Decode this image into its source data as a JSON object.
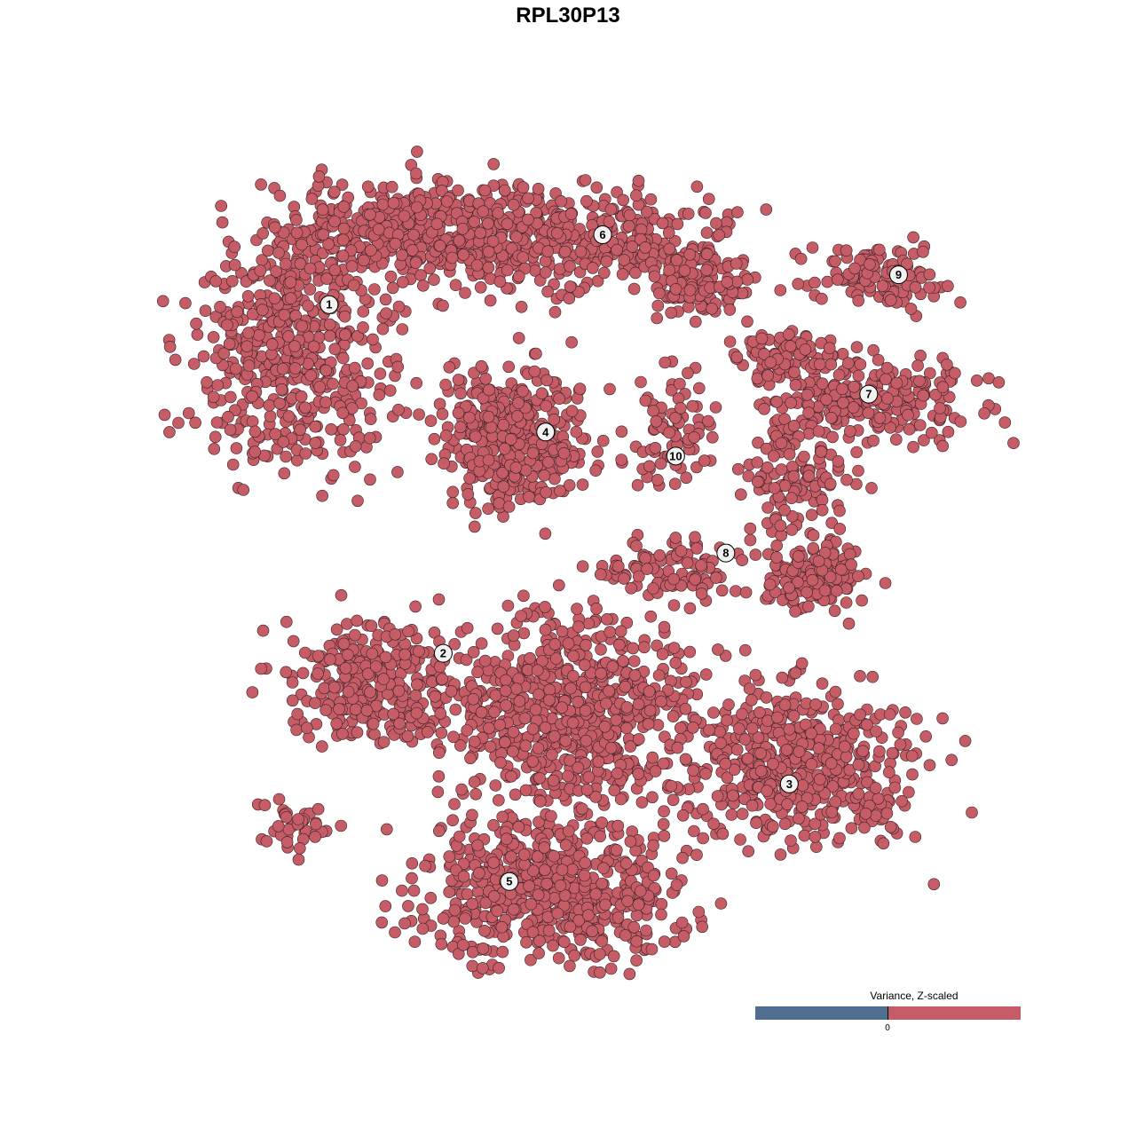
{
  "chart_data": {
    "type": "scatter",
    "title": "RPL30P13",
    "xlabel": "",
    "ylabel": "",
    "xlim": [
      -53,
      53
    ],
    "ylim": [
      -53,
      53
    ],
    "grid": false,
    "axes_visible": false,
    "point_color": "#c55c66",
    "point_outline": "#3a2326",
    "note_values": "all cells show Z-scaled variance above 0 (uniform red)",
    "clusters": [
      {
        "id": "1",
        "label_pos": [
          -22.4,
          24.7
        ],
        "regions": [
          {
            "center": [
              -25.8,
              20
            ],
            "spread": [
              9.2,
              10.8
            ],
            "n": 500
          },
          {
            "center": [
              -15,
              31.7
            ],
            "spread": [
              12.5,
              5
            ],
            "n": 350
          }
        ]
      },
      {
        "id": "2",
        "label_pos": [
          -11.7,
          -8
        ],
        "regions": [
          {
            "center": [
              -18.3,
              -10.8
            ],
            "spread": [
              8.3,
              5.8
            ],
            "n": 300
          },
          {
            "center": [
              -25.8,
              -24.2
            ],
            "spread": [
              3.3,
              2.5
            ],
            "n": 40
          }
        ]
      },
      {
        "id": "3",
        "label_pos": [
          20.75,
          -20.25
        ],
        "regions": [
          {
            "center": [
              21.7,
              -18.3
            ],
            "spread": [
              10.8,
              7.5
            ],
            "n": 500
          }
        ]
      },
      {
        "id": "4",
        "label_pos": [
          -2.1,
          12.75
        ],
        "regions": [
          {
            "center": [
              -5,
              12.5
            ],
            "spread": [
              6.7,
              6.7
            ],
            "n": 400
          }
        ]
      },
      {
        "id": "5",
        "label_pos": [
          -5.5,
          -29.4
        ],
        "regions": [
          {
            "center": [
              -1.7,
              -30
            ],
            "spread": [
              11.7,
              6.7
            ],
            "n": 600
          },
          {
            "center": [
              0.8,
              -13.3
            ],
            "spread": [
              11.7,
              9.2
            ],
            "n": 700
          }
        ]
      },
      {
        "id": "6",
        "label_pos": [
          3.25,
          31.25
        ],
        "regions": [
          {
            "center": [
              0,
              30.8
            ],
            "spread": [
              15,
              5
            ],
            "n": 400
          },
          {
            "center": [
              12.5,
              26.7
            ],
            "spread": [
              5,
              3.3
            ],
            "n": 120
          }
        ]
      },
      {
        "id": "7",
        "label_pos": [
          28.2,
          16.3
        ],
        "regions": [
          {
            "center": [
              28.3,
              15.8
            ],
            "spread": [
              10.8,
              4.2
            ],
            "n": 250
          },
          {
            "center": [
              20,
              20
            ],
            "spread": [
              4.2,
              2.5
            ],
            "n": 80
          }
        ]
      },
      {
        "id": "8",
        "label_pos": [
          14.8,
          1.4
        ],
        "regions": [
          {
            "center": [
              21.7,
              8.3
            ],
            "spread": [
              5,
              5
            ],
            "n": 120
          },
          {
            "center": [
              23.3,
              -0.8
            ],
            "spread": [
              5,
              3.3
            ],
            "n": 150
          },
          {
            "center": [
              10,
              0
            ],
            "spread": [
              6.7,
              2.5
            ],
            "n": 100
          }
        ]
      },
      {
        "id": "9",
        "label_pos": [
          31,
          27.5
        ],
        "regions": [
          {
            "center": [
              29.2,
              27.5
            ],
            "spread": [
              6.7,
              3.3
            ],
            "n": 120
          }
        ]
      },
      {
        "id": "10",
        "label_pos": [
          10.1,
          10.5
        ],
        "regions": [
          {
            "center": [
              10,
              13.3
            ],
            "spread": [
              4.2,
              5
            ],
            "n": 80
          }
        ]
      }
    ],
    "legend": {
      "title": "Variance, Z-scaled",
      "placement": "bottom-right",
      "tick_label": "0",
      "low_color": "#4f6d8f",
      "high_color": "#c55c66"
    }
  }
}
